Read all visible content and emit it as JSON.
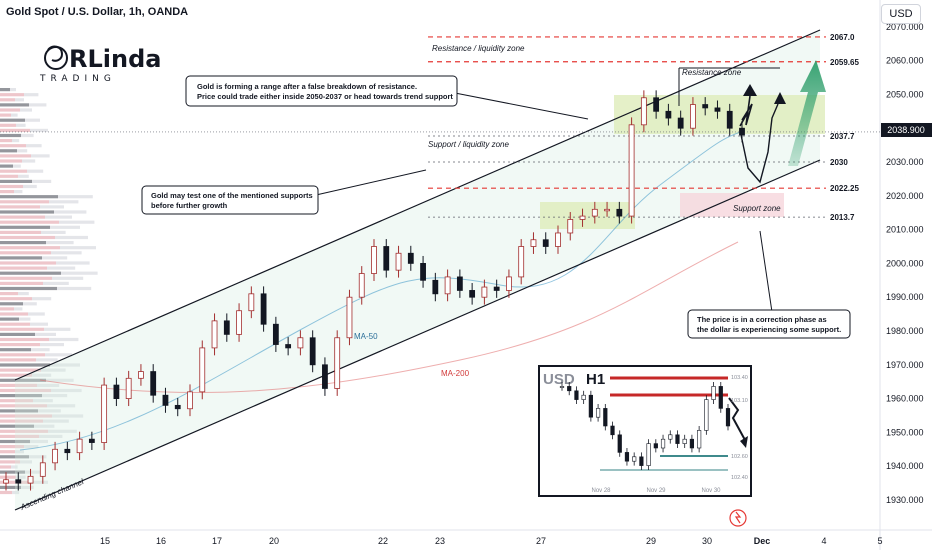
{
  "header": {
    "title": "Gold Spot / U.S. Dollar, 1h, OANDA",
    "currency": "USD"
  },
  "logo": {
    "big": "RLinda",
    "small": "TRADING"
  },
  "chart_data": {
    "type": "candlestick",
    "y_ticks": [
      1930,
      1940,
      1950,
      1960,
      1970,
      1980,
      1990,
      2000,
      2010,
      2020,
      2030,
      2040,
      2050,
      2060,
      2070
    ],
    "y_range": [
      1926,
      2072
    ],
    "x_ticks": [
      "15",
      "16",
      "17",
      "20",
      "22",
      "23",
      "27",
      "29",
      "30",
      "Dec",
      "4",
      "5"
    ],
    "current_price": "2038.900",
    "levels": [
      {
        "label": "2067.0",
        "value": 2067.0,
        "style": "dashed-red"
      },
      {
        "label": "2059.65",
        "value": 2059.65,
        "style": "dashed-red"
      },
      {
        "label": "2037.7",
        "value": 2037.7,
        "style": "dotted-gray"
      },
      {
        "label": "2030",
        "value": 2030,
        "style": "dotted-gray"
      },
      {
        "label": "2022.25",
        "value": 2022.25,
        "style": "dashed-red"
      },
      {
        "label": "2013.7",
        "value": 2013.7,
        "style": "dotted-gray"
      }
    ],
    "zones": {
      "resistance_liquidity": "Resistance / liquidity zone",
      "support_liquidity": "Support / liquidity zone",
      "resistance": "Resistance zone",
      "support": "Support zone"
    },
    "indicators": {
      "ma50": "MA-50",
      "ma200": "MA-200"
    },
    "channel_label": "Ascending channel",
    "annotations": {
      "top": [
        "Gold is forming a range after a false breakdown of resistance.",
        "Price could trade either inside 2050-2037 or head towards trend support"
      ],
      "middle": [
        "Gold may test one of the mentioned supports",
        "before further growth"
      ],
      "bottom": [
        "The price is in a correction phase as",
        "the dollar is experiencing some support."
      ]
    },
    "closes": [
      1936,
      1935,
      1937,
      1941,
      1945,
      1944,
      1948,
      1947,
      1964,
      1960,
      1966,
      1968,
      1961,
      1958,
      1957,
      1962,
      1975,
      1983,
      1979,
      1986,
      1991,
      1982,
      1976,
      1975,
      1978,
      1970,
      1963,
      1978,
      1990,
      1997,
      2005,
      1998,
      2003,
      2000,
      1995,
      1991,
      1996,
      1992,
      1990,
      1993,
      1992,
      1996,
      2005,
      2007,
      2005,
      2009,
      2013,
      2014,
      2016,
      2016,
      2014,
      2041,
      2049,
      2045,
      2043,
      2040,
      2047,
      2046,
      2045,
      2040,
      2038
    ],
    "inset": {
      "symbol": "USD",
      "timeframe": "H1",
      "ticks": [
        "103.40",
        "103.10",
        "102.60",
        "102.40"
      ],
      "dates": [
        "Nov 28",
        "Nov 29",
        "Nov 30"
      ],
      "closes": [
        103.35,
        103.3,
        103.2,
        103.25,
        103.0,
        103.1,
        102.9,
        102.8,
        102.6,
        102.5,
        102.55,
        102.45,
        102.7,
        102.65,
        102.75,
        102.8,
        102.7,
        102.75,
        102.65,
        102.85,
        103.2,
        103.35,
        103.1,
        102.9
      ]
    }
  }
}
